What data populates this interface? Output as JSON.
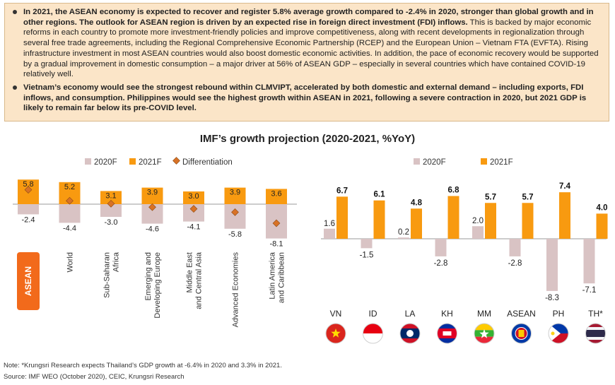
{
  "summary": {
    "bullet1": {
      "bold": "In 2021, the ASEAN economy is expected to recover and register 5.8% average growth compared to -2.4% in 2020, stronger than global growth and in other regions. The outlook for ASEAN region is driven by an expected rise in foreign direct investment (FDI) inflows.",
      "normal": " This is backed by major economic reforms in each country to promote more investment-friendly policies and improve competitiveness, along with recent developments in regionalization through several free trade agreements, including the Regional Comprehensive Economic Partnership (RCEP) and the European Union – Vietnam FTA (EVFTA). Rising infrastructure investment in most ASEAN countries would also boost domestic economic activities. In addition, the pace of economic recovery would be supported by a gradual improvement in domestic consumption – a major driver at 56% of ASEAN GDP – especially in several countries which have contained COVID-19 relatively well."
    },
    "bullet2": {
      "bold": "Vietnam’s economy would see the strongest rebound within CLMVIPT, accelerated by both domestic and external demand – including exports, FDI inflows, and consumption. Philippines would see the highest growth within ASEAN in 2021, following a severe contraction in 2020, but 2021 GDP is likely to remain far below its pre-COVID level.",
      "normal": ""
    }
  },
  "chart_title": "IMF’s growth projection (2020-2021, %YoY)",
  "colors": {
    "f2020": "#d9c3c4",
    "f2021": "#f89a10",
    "diff": "#d87226",
    "asean_badge": "#f26a1b",
    "panel": "#fbe5c8"
  },
  "chart_data": [
    {
      "type": "bar",
      "categories": [
        "ASEAN",
        "World",
        "Sub-Saharan Africa",
        "Emerging and Developing Europe",
        "Middle East and Central Asia",
        "Advanced Economies",
        "Latin America and Caribbean"
      ],
      "category_labels": [
        [
          "ASEAN"
        ],
        [
          "World"
        ],
        [
          "Sub-Saharan",
          "Africa"
        ],
        [
          "Emerging and",
          "Developing Europe"
        ],
        [
          "Middle East",
          "and Central Asia"
        ],
        [
          "Advanced Economies"
        ],
        [
          "Latin America",
          "and Caribbean"
        ]
      ],
      "series": [
        {
          "name": "2020F",
          "values": [
            -2.4,
            -4.4,
            -3.0,
            -4.6,
            -4.1,
            -5.8,
            -8.1
          ]
        },
        {
          "name": "2021F",
          "values": [
            5.8,
            5.2,
            3.1,
            3.9,
            3.0,
            3.9,
            3.6
          ]
        },
        {
          "name": "Differentiation",
          "values": [
            3.4,
            0.8,
            0.1,
            -0.7,
            -1.1,
            -1.9,
            -4.5
          ]
        }
      ],
      "stacked": true,
      "legend": "top",
      "grid": false
    },
    {
      "type": "bar",
      "categories": [
        "VN",
        "ID",
        "LA",
        "KH",
        "MM",
        "ASEAN",
        "PH",
        "TH*"
      ],
      "series": [
        {
          "name": "2020F",
          "values": [
            1.6,
            -1.5,
            0.2,
            -2.8,
            2.0,
            -2.8,
            -8.3,
            -7.1
          ]
        },
        {
          "name": "2021F",
          "values": [
            6.7,
            6.1,
            4.8,
            6.8,
            5.7,
            5.7,
            7.4,
            4.0
          ]
        }
      ],
      "legend": "top",
      "grid": false
    }
  ],
  "labels": {
    "left_2020": [
      "-2.4",
      "-4.4",
      "-3.0",
      "-4.6",
      "-4.1",
      "-5.8",
      "-8.1"
    ],
    "left_2021": [
      "5.8",
      "5.2",
      "3.1",
      "3.9",
      "3.0",
      "3.9",
      "3.6"
    ],
    "right_2020": [
      "1.6",
      "-1.5",
      "0.2",
      "-2.8",
      "2.0",
      "-2.8",
      "-8.3",
      "-7.1"
    ],
    "right_2021": [
      "6.7",
      "6.1",
      "4.8",
      "6.8",
      "5.7",
      "5.7",
      "7.4",
      "4.0"
    ]
  },
  "flags": [
    "vietnam-flag",
    "indonesia-flag",
    "laos-flag",
    "cambodia-flag",
    "myanmar-flag",
    "asean-flag",
    "philippines-flag",
    "thailand-flag"
  ],
  "footnotes": {
    "note": "Note: *Krungsri Research expects Thailand’s GDP growth at -6.4% in 2020 and 3.3% in 2021.",
    "source": "Source: IMF WEO (October 2020), CEIC, Krungsri Research"
  }
}
